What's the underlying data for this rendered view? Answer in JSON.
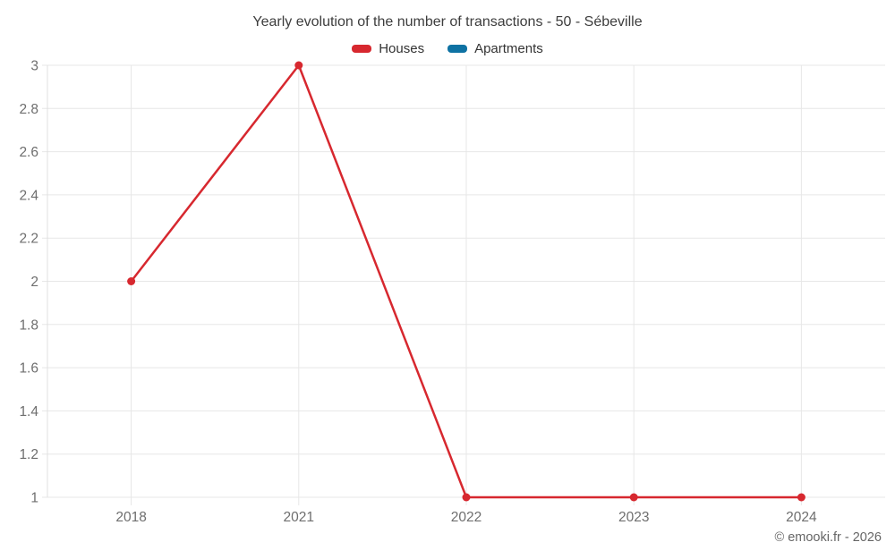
{
  "header": {
    "title": "Yearly evolution of the number of transactions - 50 - Sébeville"
  },
  "legend": {
    "items": [
      {
        "label": "Houses",
        "color": "#d7282f"
      },
      {
        "label": "Apartments",
        "color": "#0e72a3"
      }
    ]
  },
  "footer": {
    "credit": "© emooki.fr - 2026"
  },
  "chart_data": {
    "type": "line",
    "title": "Yearly evolution of the number of transactions - 50 - Sébeville",
    "categories": [
      "2018",
      "2021",
      "2022",
      "2023",
      "2024"
    ],
    "series": [
      {
        "name": "Houses",
        "color": "#d7282f",
        "values": [
          2,
          3,
          1,
          1,
          1
        ]
      },
      {
        "name": "Apartments",
        "color": "#0e72a3",
        "values": []
      }
    ],
    "xlabel": "",
    "ylabel": "",
    "ylim": [
      1,
      3
    ],
    "yticks": [
      1,
      1.2,
      1.4,
      1.6,
      1.8,
      2,
      2.2,
      2.4,
      2.6,
      2.8,
      3
    ],
    "ytick_labels": [
      "1",
      "1.2",
      "1.4",
      "1.6",
      "1.8",
      "2",
      "2.2",
      "2.4",
      "2.6",
      "2.8",
      "3"
    ],
    "grid": true,
    "legend_position": "top",
    "marker": "circle",
    "colors": {
      "grid": "#e7e7e7",
      "axis": "#e0e0e0",
      "tick_text": "#6e6e6e"
    }
  }
}
